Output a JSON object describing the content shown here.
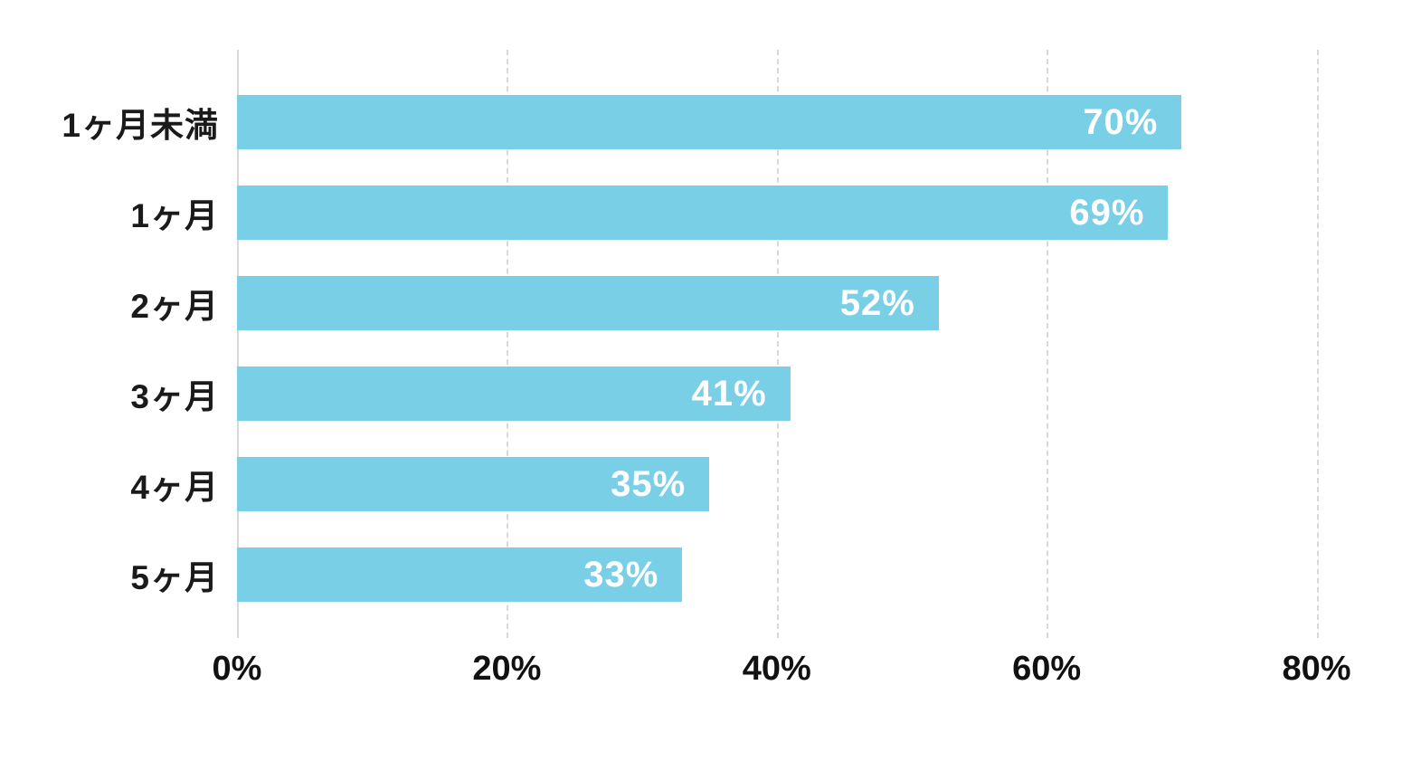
{
  "chart_data": {
    "type": "bar",
    "orientation": "horizontal",
    "title": "",
    "categories": [
      "1ヶ月未満",
      "1ヶ月",
      "2ヶ月",
      "3ヶ月",
      "4ヶ月",
      "5ヶ月"
    ],
    "values": [
      70,
      69,
      52,
      41,
      35,
      33
    ],
    "value_labels": [
      "70%",
      "69%",
      "52%",
      "41%",
      "35%",
      "33%"
    ],
    "x_tick_labels": [
      "0%",
      "20%",
      "40%",
      "60%",
      "80%"
    ],
    "x_tick_values": [
      0,
      20,
      40,
      60,
      80
    ],
    "xlim": [
      0,
      87
    ],
    "grid": "vertical-dashed",
    "legend": "none",
    "colors": {
      "bar": "#79cfe6",
      "value_label": "#ffffff",
      "axis_text": "#111111",
      "gridline": "#d8d8d8",
      "axis_line": "#d9d9d9",
      "background": "#ffffff"
    }
  }
}
